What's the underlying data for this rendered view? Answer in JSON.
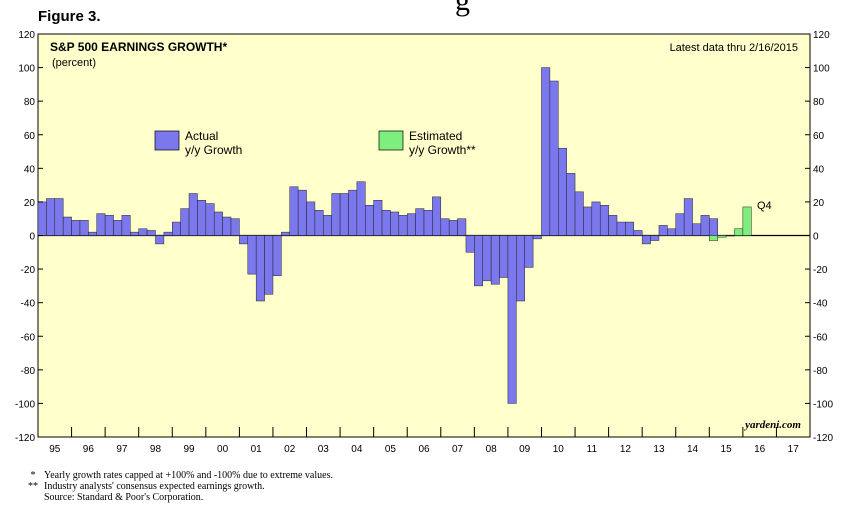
{
  "figure_label": "Figure 3.",
  "title_fragment": "g",
  "chart_data": {
    "type": "bar",
    "title": "S&P 500 EARNINGS GROWTH*",
    "subtitle": "(percent)",
    "note": "Latest data thru 2/16/2015",
    "credit": "yardeni.com",
    "annotation": "Q4",
    "ylim": [
      -120,
      120
    ],
    "yticks": [
      120,
      100,
      80,
      60,
      40,
      20,
      0,
      -20,
      -40,
      -60,
      -80,
      -100,
      -120
    ],
    "xlim": [
      1995,
      2018
    ],
    "year_labels": [
      "95",
      "96",
      "97",
      "98",
      "99",
      "00",
      "01",
      "02",
      "03",
      "04",
      "05",
      "06",
      "07",
      "08",
      "09",
      "10",
      "11",
      "12",
      "13",
      "14",
      "15",
      "16",
      "17"
    ],
    "legend": [
      {
        "label1": "Actual",
        "label2": "y/y Growth",
        "color": "#7b78ee"
      },
      {
        "label1": "Estimated",
        "label2": "y/y Growth**",
        "color": "#7eef7e"
      }
    ],
    "series": [
      {
        "name": "Actual y/y Growth",
        "color": "#7b78ee",
        "start": 1995.0,
        "values": [
          20,
          22,
          22,
          11,
          9,
          9,
          2,
          13,
          12,
          9,
          12,
          2,
          4,
          3,
          -5,
          2,
          8,
          16,
          25,
          21,
          19,
          14,
          11,
          10,
          -5,
          -23,
          -39,
          -35,
          -24,
          2,
          29,
          27,
          20,
          15,
          12,
          25,
          25,
          27,
          32,
          18,
          21,
          15,
          14,
          12,
          13,
          16,
          15,
          23,
          10,
          9,
          10,
          -10,
          -30,
          -27,
          -29,
          -25,
          -100,
          -39,
          -19,
          -2,
          100,
          92,
          52,
          37,
          26,
          17,
          20,
          18,
          12,
          8,
          8,
          3,
          -5,
          -3,
          6,
          4,
          13,
          22,
          7,
          12,
          10
        ]
      },
      {
        "name": "Estimated y/y Growth",
        "color": "#7eef7e",
        "start": 2015.0,
        "values": [
          -3,
          -1,
          0,
          4,
          17
        ]
      }
    ]
  },
  "footnotes": [
    {
      "mark": "*",
      "text": "Yearly growth rates capped at +100% and -100% due to extreme values."
    },
    {
      "mark": "**",
      "text": "Industry analysts' consensus expected earnings growth."
    },
    {
      "mark": "",
      "text": "Source: Standard & Poor's Corporation."
    }
  ]
}
